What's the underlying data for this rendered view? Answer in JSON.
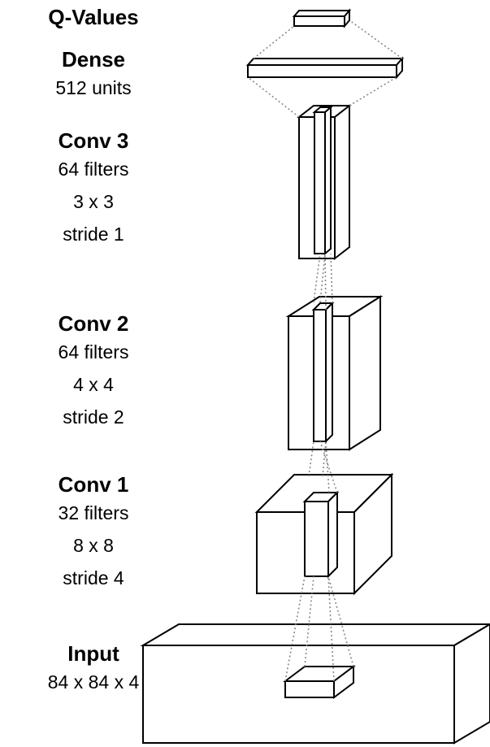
{
  "layers": [
    {
      "id": "q",
      "title": "Q-Values",
      "details": []
    },
    {
      "id": "dense",
      "title": "Dense",
      "details": [
        "512 units"
      ]
    },
    {
      "id": "conv3",
      "title": "Conv 3",
      "details": [
        "64 filters",
        "3 x 3",
        "stride 1"
      ]
    },
    {
      "id": "conv2",
      "title": "Conv 2",
      "details": [
        "64 filters",
        "4 x 4",
        "stride 2"
      ]
    },
    {
      "id": "conv1",
      "title": "Conv 1",
      "details": [
        "32 filters",
        "8 x 8",
        "stride 4"
      ]
    },
    {
      "id": "input",
      "title": "Input",
      "details": [
        "84 x 84 x 4"
      ]
    }
  ],
  "colors": {
    "stroke": "#000000",
    "fill": "#ffffff",
    "connector": "#888888"
  }
}
